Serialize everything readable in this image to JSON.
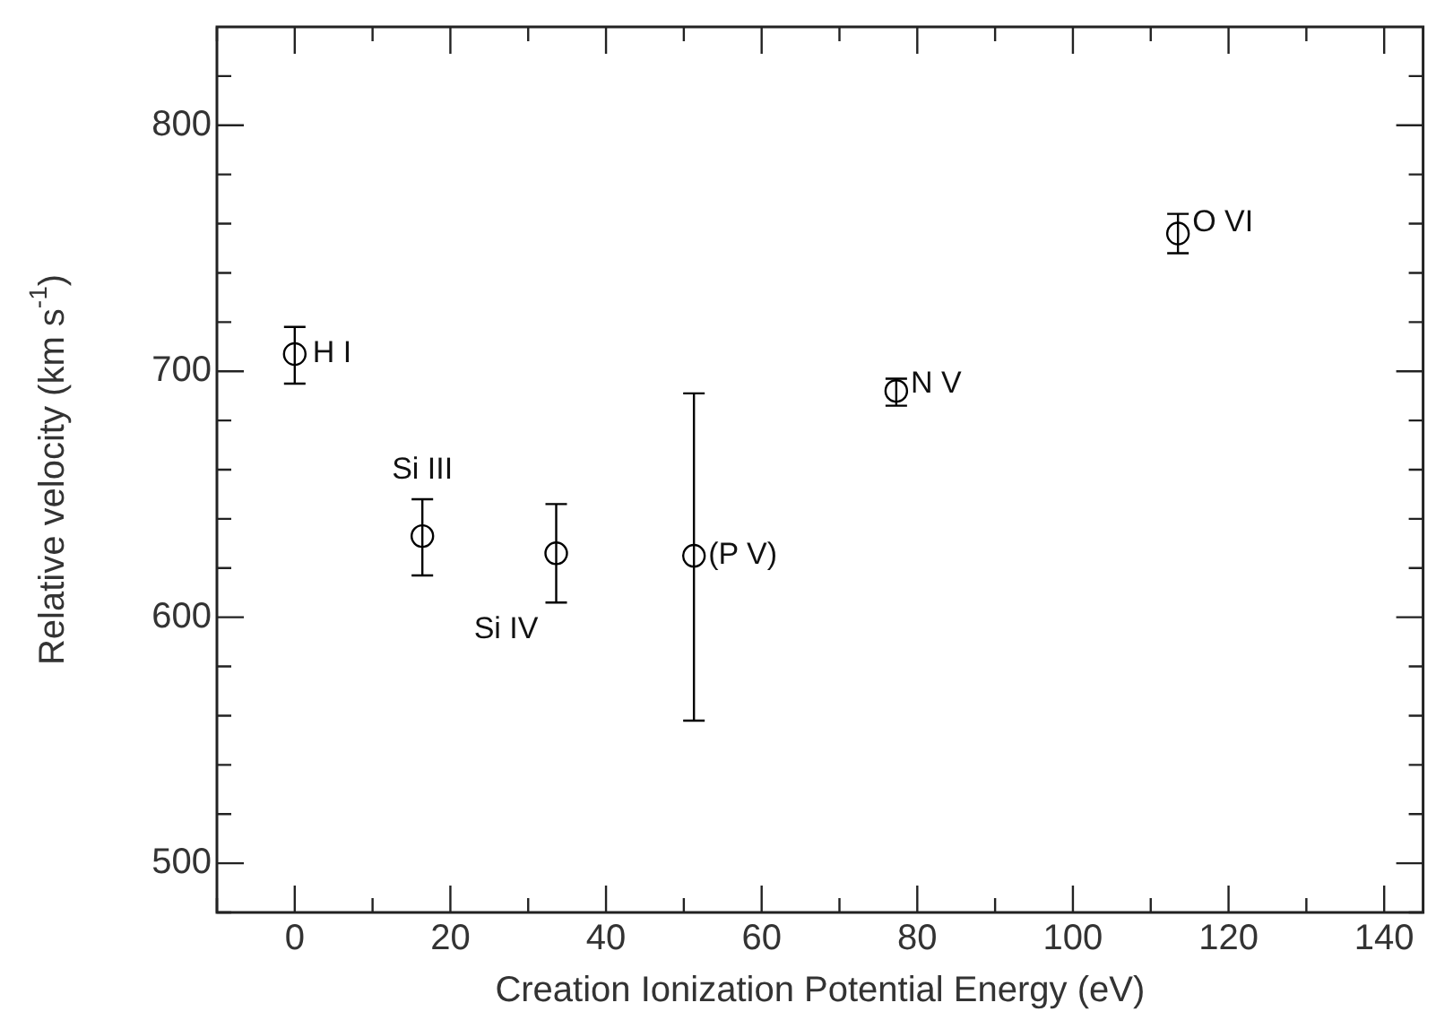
{
  "chart_data": {
    "type": "scatter",
    "xlabel": "Creation Ionization Potential Energy (eV)",
    "ylabel": "Relative velocity (km s$^{-1}$)",
    "x": [
      0,
      16.4,
      33.6,
      51.3,
      77.3,
      113.5
    ],
    "values": [
      707,
      633,
      626,
      625,
      692,
      756
    ],
    "errors": [
      [
        695,
        718
      ],
      [
        617,
        648
      ],
      [
        606,
        646
      ],
      [
        558,
        691
      ],
      [
        686,
        697
      ],
      [
        748,
        764
      ]
    ],
    "color": "#000000",
    "marker": "circle",
    "grid": false,
    "legend": false,
    "xlim": [
      -10,
      145
    ],
    "xticks": [
      {
        "value": -10,
        "label": null
      },
      0,
      {
        "value": 10,
        "label": null
      },
      20,
      {
        "value": 30,
        "label": null
      },
      40,
      {
        "value": 50,
        "label": null
      },
      60,
      {
        "value": 70,
        "label": null
      },
      80,
      {
        "value": 90,
        "label": null
      },
      100,
      {
        "value": 110,
        "label": null
      },
      120,
      {
        "value": 130,
        "label": null
      },
      140
    ],
    "ylim": [
      480,
      840
    ],
    "yticks": [
      {
        "value": 480,
        "label": null
      },
      500,
      {
        "value": 520,
        "label": null
      },
      {
        "value": 540,
        "label": null
      },
      {
        "value": 560,
        "label": null
      },
      {
        "value": 580,
        "label": null
      },
      600,
      {
        "value": 620,
        "label": null
      },
      {
        "value": 640,
        "label": null
      },
      {
        "value": 660,
        "label": null
      },
      {
        "value": 680,
        "label": null
      },
      700,
      {
        "value": 720,
        "label": null
      },
      {
        "value": 740,
        "label": null
      },
      {
        "value": 760,
        "label": null
      },
      {
        "value": 780,
        "label": null
      },
      800,
      {
        "value": 820,
        "label": null
      }
    ],
    "annotations": [
      {
        "text": "H I",
        "x": 0,
        "y": 707
      },
      {
        "text": "Si III",
        "x": 16.4,
        "y": 633
      },
      {
        "text": "Si IV",
        "x": 33.6,
        "y": 626
      },
      {
        "text": "(P V)",
        "x": 51.3,
        "y": 625
      },
      {
        "text": "N V",
        "x": 77.3,
        "y": 692
      },
      {
        "text": "O VI",
        "x": 113.5,
        "y": 756
      }
    ]
  }
}
